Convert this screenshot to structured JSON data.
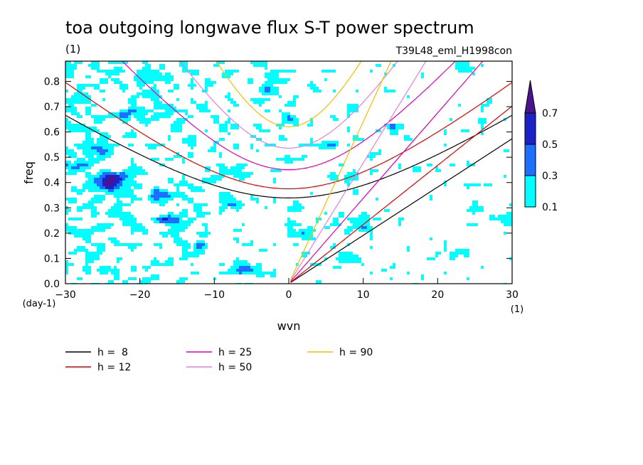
{
  "chart_data": {
    "type": "heatmap",
    "title": "toa outgoing longwave flux S-T power spectrum",
    "title_units": "(1)",
    "subtitle": "T39L48_eml_H1998con",
    "xlabel": "wvn",
    "xlabel_units": "(1)",
    "ylabel": "freq",
    "ylabel_units": "(day-1)",
    "xlim": [
      -30,
      30
    ],
    "ylim": [
      0,
      0.88
    ],
    "x_ticks": [
      -30,
      -20,
      -10,
      0,
      10,
      20,
      30
    ],
    "x_tick_labels": [
      "−30",
      "−20",
      "−10",
      "0",
      "10",
      "20",
      "30"
    ],
    "y_ticks": [
      0.0,
      0.1,
      0.2,
      0.3,
      0.4,
      0.5,
      0.6,
      0.7,
      0.8
    ],
    "y_tick_labels": [
      "0.0",
      "0.1",
      "0.2",
      "0.3",
      "0.4",
      "0.5",
      "0.6",
      "0.7",
      "0.8"
    ],
    "colorbar": {
      "levels": [
        0.1,
        0.3,
        0.5,
        0.7
      ],
      "labels": [
        "0.1",
        "0.3",
        "0.5",
        "0.7"
      ],
      "colors": [
        "#00ffff",
        "#1e6fff",
        "#1c22c8",
        "#4a148c"
      ],
      "extend": "max"
    },
    "grid": false,
    "legend_placement": "bottom",
    "legend": [
      {
        "label": "h =  8",
        "color": "#000000"
      },
      {
        "label": "h = 12",
        "color": "#e00000"
      },
      {
        "label": "h = 25",
        "color": "#e000b0"
      },
      {
        "label": "h = 50",
        "color": "#e080e0"
      },
      {
        "label": "h = 90",
        "color": "#f0c000"
      }
    ],
    "blobs": [
      {
        "x": -23.5,
        "y": 0.42,
        "v": 0.6
      },
      {
        "x": -24.5,
        "y": 0.39,
        "v": 0.55
      },
      {
        "x": -17,
        "y": 0.35,
        "v": 0.45
      },
      {
        "x": -16,
        "y": 0.25,
        "v": 0.45
      },
      {
        "x": -26,
        "y": 0.53,
        "v": 0.4
      },
      {
        "x": -22,
        "y": 0.67,
        "v": 0.3
      },
      {
        "x": -28,
        "y": 0.46,
        "v": 0.3
      },
      {
        "x": -6,
        "y": 0.05,
        "v": 0.4
      },
      {
        "x": 29,
        "y": 0.26,
        "v": 0.4
      },
      {
        "x": 24,
        "y": 0.85,
        "v": 0.4
      },
      {
        "x": 10,
        "y": 0.23,
        "v": 0.35
      },
      {
        "x": 5,
        "y": 0.55,
        "v": 0.35
      },
      {
        "x": -3,
        "y": 0.78,
        "v": 0.3
      },
      {
        "x": 14,
        "y": 0.62,
        "v": 0.3
      },
      {
        "x": -12,
        "y": 0.15,
        "v": 0.25
      },
      {
        "x": 18,
        "y": 0.45,
        "v": 0.25
      },
      {
        "x": -8,
        "y": 0.32,
        "v": 0.22
      },
      {
        "x": 2,
        "y": 0.2,
        "v": 0.22
      },
      {
        "x": 8,
        "y": 0.1,
        "v": 0.22
      },
      {
        "x": 22,
        "y": 0.12,
        "v": 0.22
      },
      {
        "x": -20,
        "y": 0.8,
        "v": 0.2
      },
      {
        "x": 0,
        "y": 0.65,
        "v": 0.2
      },
      {
        "x": 26,
        "y": 0.65,
        "v": 0.2
      },
      {
        "x": -14,
        "y": 0.55,
        "v": 0.2
      }
    ]
  }
}
